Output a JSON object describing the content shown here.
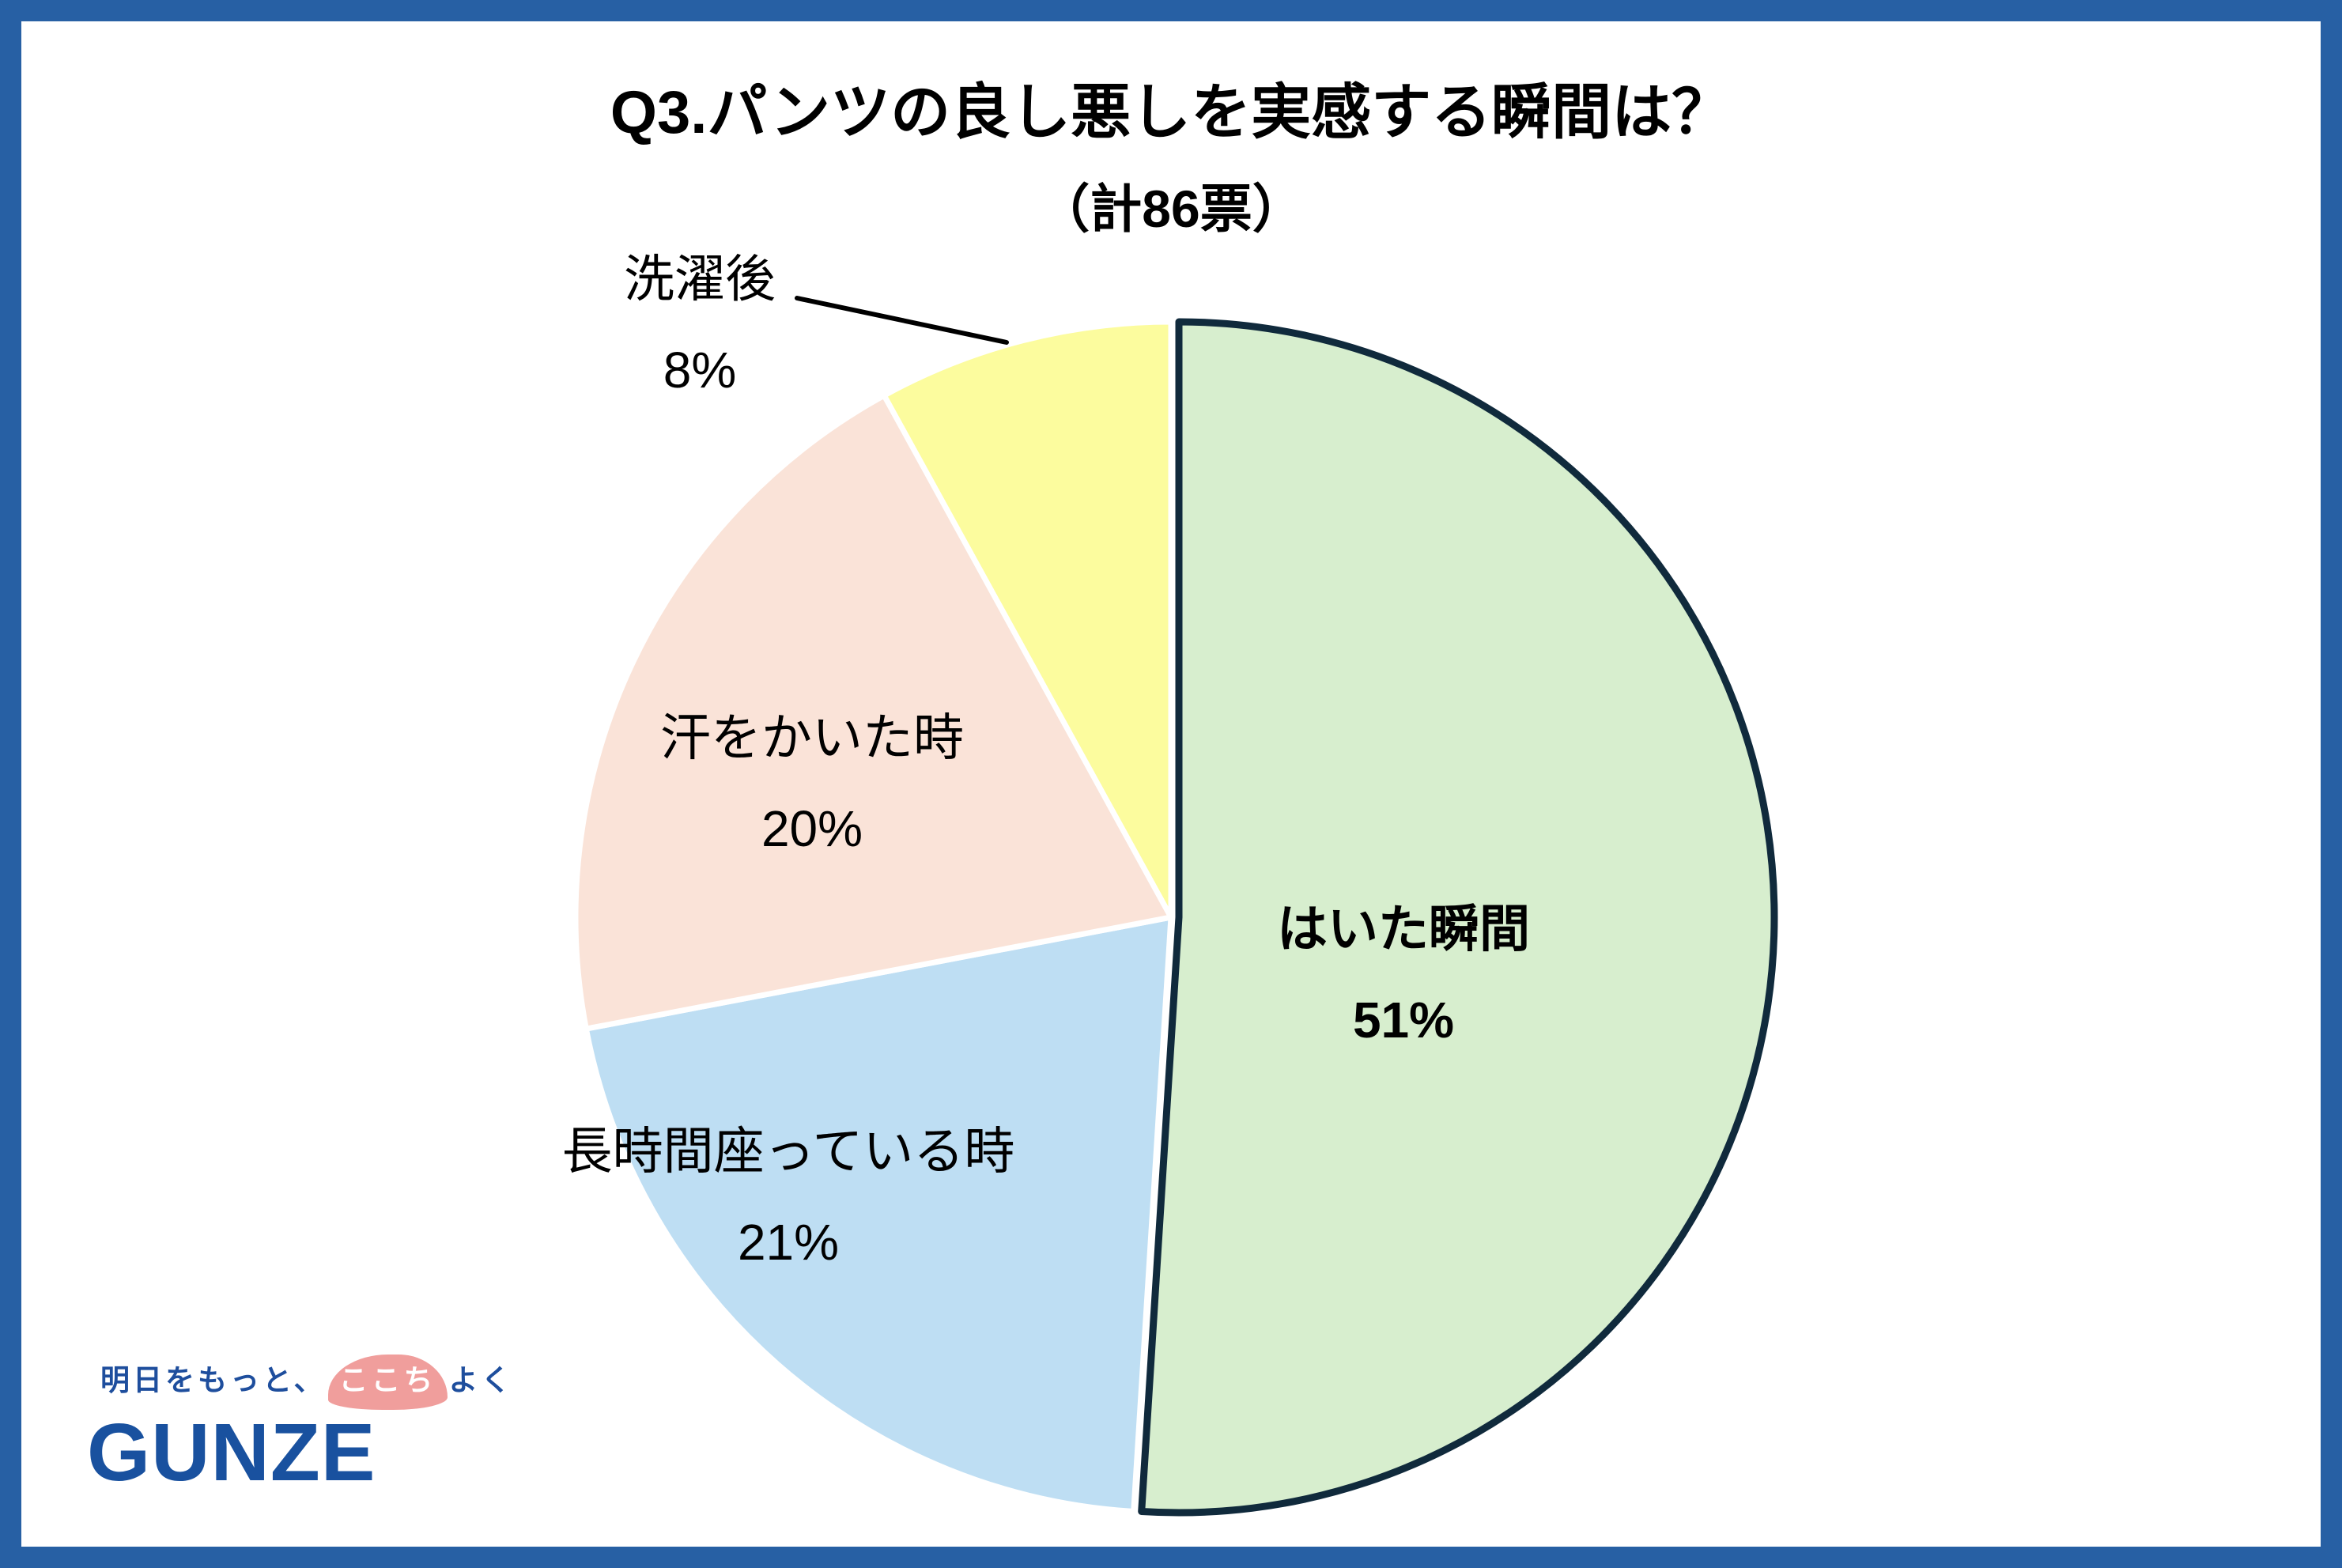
{
  "frame": {
    "border_color": "#2760A4"
  },
  "chart_data": {
    "type": "pie",
    "title": "Q3.パンツの良し悪しを実感する瞬間は？",
    "subtitle": "（計86票）",
    "total_votes": 86,
    "start_angle_deg": 0,
    "direction": "clockwise",
    "legend": "none",
    "slices": [
      {
        "label": "はいた瞬間",
        "pct": 51,
        "pct_text": "51%",
        "color": "#D7EECE",
        "outline": "#102A3C",
        "emphasized": true,
        "label_placement": "inside-bold"
      },
      {
        "label": "長時間座っている時",
        "pct": 21,
        "pct_text": "21%",
        "color": "#BEDEF3",
        "label_placement": "inside"
      },
      {
        "label": "汗をかいた時",
        "pct": 20,
        "pct_text": "20%",
        "color": "#FAE3D8",
        "label_placement": "inside"
      },
      {
        "label": "洗濯後",
        "pct": 8,
        "pct_text": "8%",
        "color": "#FCFC9E",
        "label_placement": "outside-with-leader-line"
      }
    ]
  },
  "logo": {
    "tagline_prefix": "明日をもっと、",
    "tagline_highlight": "ここち",
    "tagline_suffix": "よく",
    "brand": "GUNZE",
    "tagline_color": "#1E4E9D",
    "highlight_bg": "#F09E9C",
    "brand_color": "#19519F"
  }
}
